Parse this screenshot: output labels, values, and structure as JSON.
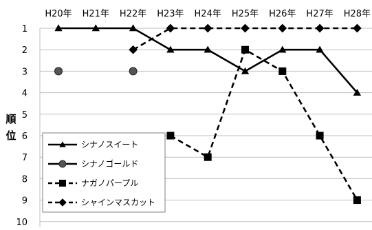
{
  "chart_data": {
    "type": "line",
    "x": [
      "H20年",
      "H21年",
      "H22年",
      "H23年",
      "H24年",
      "H25年",
      "H26年",
      "H27年",
      "H28年"
    ],
    "ylabel": "順位",
    "ylim": [
      1,
      10
    ],
    "y_inverted": true,
    "y_ticks": [
      "1",
      "2",
      "3",
      "4",
      "5",
      "6",
      "7",
      "8",
      "9",
      "10"
    ],
    "x_axis_position": "top",
    "grid": true,
    "legend_position": "bottom-left",
    "series": [
      {
        "name": "シナノスイート",
        "marker": "triangle",
        "line_style": "solid",
        "color": "#000000",
        "values": [
          1,
          1,
          1,
          2,
          2,
          3,
          2,
          2,
          4
        ]
      },
      {
        "name": "シナノゴールド",
        "marker": "circle",
        "line_style": "none",
        "color": "#000000",
        "values": [
          3,
          null,
          3,
          null,
          null,
          null,
          null,
          null,
          null
        ]
      },
      {
        "name": "ナガノパープル",
        "marker": "square",
        "line_style": "dashed",
        "color": "#000000",
        "values": [
          null,
          null,
          null,
          6,
          7,
          2,
          3,
          6,
          9
        ]
      },
      {
        "name": "シャインマスカット",
        "marker": "diamond",
        "line_style": "dashed",
        "color": "#000000",
        "values": [
          null,
          null,
          2,
          1,
          1,
          1,
          1,
          1,
          1
        ]
      }
    ]
  }
}
